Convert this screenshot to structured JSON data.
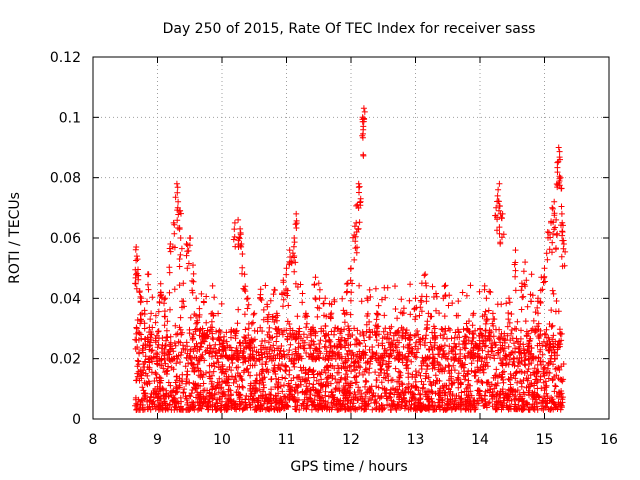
{
  "chart_data": {
    "type": "scatter",
    "title": "Day 250 of 2015, Rate Of TEC Index for receiver sass",
    "xlabel": "GPS time / hours",
    "ylabel": "ROTI / TECUs",
    "xlim": [
      8,
      16
    ],
    "ylim": [
      0,
      0.12
    ],
    "xticks": [
      8,
      9,
      10,
      11,
      12,
      13,
      14,
      15,
      16
    ],
    "xtick_labels": [
      "8",
      "9",
      "10",
      "11",
      "12",
      "13",
      "14",
      "15",
      "16"
    ],
    "yticks": [
      0,
      0.02,
      0.04,
      0.06,
      0.08,
      0.1,
      0.12
    ],
    "ytick_labels": [
      "0",
      "0.02",
      "0.04",
      "0.06",
      "0.08",
      "0.1",
      "0.12"
    ],
    "grid": true,
    "marker": "+",
    "color": "#ff0000",
    "series": [
      {
        "name": "ROTI",
        "points": [
          [
            8.67,
            0.057
          ],
          [
            8.68,
            0.054
          ],
          [
            8.69,
            0.053
          ],
          [
            8.72,
            0.042
          ],
          [
            8.75,
            0.04
          ],
          [
            8.8,
            0.036
          ],
          [
            8.85,
            0.048
          ],
          [
            8.9,
            0.035
          ],
          [
            9.05,
            0.042
          ],
          [
            9.12,
            0.04
          ],
          [
            9.2,
            0.058
          ],
          [
            9.25,
            0.065
          ],
          [
            9.3,
            0.078
          ],
          [
            9.32,
            0.072
          ],
          [
            9.35,
            0.069
          ],
          [
            9.36,
            0.06
          ],
          [
            9.4,
            0.045
          ],
          [
            9.45,
            0.058
          ],
          [
            9.5,
            0.06
          ],
          [
            9.55,
            0.051
          ],
          [
            9.6,
            0.04
          ],
          [
            9.7,
            0.03
          ],
          [
            9.85,
            0.035
          ],
          [
            10.0,
            0.025
          ],
          [
            10.2,
            0.065
          ],
          [
            10.25,
            0.066
          ],
          [
            10.28,
            0.063
          ],
          [
            10.3,
            0.058
          ],
          [
            10.35,
            0.048
          ],
          [
            10.4,
            0.04
          ],
          [
            10.5,
            0.035
          ],
          [
            10.6,
            0.043
          ],
          [
            10.7,
            0.038
          ],
          [
            10.85,
            0.035
          ],
          [
            10.95,
            0.046
          ],
          [
            11.0,
            0.05
          ],
          [
            11.05,
            0.056
          ],
          [
            11.1,
            0.055
          ],
          [
            11.12,
            0.06
          ],
          [
            11.15,
            0.068
          ],
          [
            11.2,
            0.03
          ],
          [
            11.3,
            0.035
          ],
          [
            11.45,
            0.047
          ],
          [
            11.5,
            0.045
          ],
          [
            11.6,
            0.04
          ],
          [
            11.7,
            0.038
          ],
          [
            11.8,
            0.03
          ],
          [
            11.9,
            0.035
          ],
          [
            11.95,
            0.045
          ],
          [
            12.0,
            0.05
          ],
          [
            12.05,
            0.061
          ],
          [
            12.08,
            0.065
          ],
          [
            12.1,
            0.071
          ],
          [
            12.12,
            0.078
          ],
          [
            12.15,
            0.073
          ],
          [
            12.18,
            0.1
          ],
          [
            12.2,
            0.103
          ],
          [
            12.19,
            0.097
          ],
          [
            12.25,
            0.04
          ],
          [
            12.4,
            0.035
          ],
          [
            12.6,
            0.03
          ],
          [
            12.8,
            0.035
          ],
          [
            13.0,
            0.04
          ],
          [
            13.1,
            0.045
          ],
          [
            13.15,
            0.048
          ],
          [
            13.2,
            0.035
          ],
          [
            13.3,
            0.03
          ],
          [
            13.45,
            0.044
          ],
          [
            13.6,
            0.025
          ],
          [
            13.8,
            0.03
          ],
          [
            13.9,
            0.035
          ],
          [
            14.0,
            0.03
          ],
          [
            14.1,
            0.04
          ],
          [
            14.2,
            0.035
          ],
          [
            14.25,
            0.07
          ],
          [
            14.28,
            0.076
          ],
          [
            14.3,
            0.078
          ],
          [
            14.32,
            0.068
          ],
          [
            14.35,
            0.068
          ],
          [
            14.45,
            0.04
          ],
          [
            14.55,
            0.056
          ],
          [
            14.65,
            0.045
          ],
          [
            14.7,
            0.052
          ],
          [
            14.8,
            0.048
          ],
          [
            14.9,
            0.04
          ],
          [
            14.95,
            0.047
          ],
          [
            15.0,
            0.05
          ],
          [
            15.05,
            0.062
          ],
          [
            15.1,
            0.065
          ],
          [
            15.12,
            0.07
          ],
          [
            15.15,
            0.072
          ],
          [
            15.18,
            0.066
          ],
          [
            15.2,
            0.085
          ],
          [
            15.22,
            0.09
          ],
          [
            15.24,
            0.086
          ],
          [
            15.25,
            0.08
          ],
          [
            15.27,
            0.068
          ],
          [
            15.28,
            0.062
          ],
          [
            15.3,
            0.058
          ]
        ],
        "background_band": {
          "x_range": [
            8.65,
            15.3
          ],
          "y_typical_max": 0.03,
          "y_typical_min": 0.003,
          "note": "dense cloud of many points, mostly between 0.003 and 0.03"
        }
      }
    ]
  }
}
